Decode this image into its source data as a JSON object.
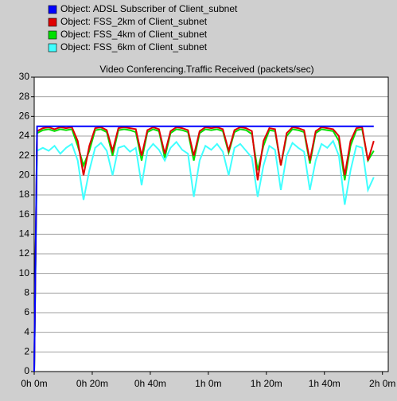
{
  "chart_data": {
    "type": "line",
    "title": "Video Conferencing.Traffic Received (packets/sec)",
    "x": [
      0,
      1,
      3,
      5,
      7,
      9,
      11,
      13,
      15,
      17,
      19,
      21,
      23,
      25,
      27,
      29,
      31,
      33,
      35,
      37,
      39,
      41,
      43,
      45,
      47,
      49,
      51,
      53,
      55,
      57,
      59,
      61,
      63,
      65,
      67,
      69,
      71,
      73,
      75,
      77,
      79,
      81,
      83,
      85,
      87,
      89,
      91,
      93,
      95,
      97,
      99,
      101,
      103,
      105,
      107,
      109,
      111,
      113,
      115,
      117
    ],
    "series": [
      {
        "name": "Object: ADSL Subscriber of Client_subnet",
        "color": "#0000ff",
        "values": [
          0,
          25,
          25,
          25,
          25,
          25,
          25,
          25,
          25,
          25,
          25,
          25,
          25,
          25,
          25,
          25,
          25,
          25,
          25,
          25,
          25,
          25,
          25,
          25,
          25,
          25,
          25,
          25,
          25,
          25,
          25,
          25,
          25,
          25,
          25,
          25,
          25,
          25,
          25,
          25,
          25,
          25,
          25,
          25,
          25,
          25,
          25,
          25,
          25,
          25,
          25,
          25,
          25,
          25,
          25,
          25,
          25,
          25,
          25,
          25
        ]
      },
      {
        "name": "Object: FSS_2km of Client_subnet",
        "color": "#e00000",
        "values": [
          0,
          24.5,
          24.8,
          24.9,
          24.7,
          24.9,
          24.8,
          24.9,
          23.5,
          20,
          23,
          24.8,
          24.9,
          24.6,
          22.5,
          24.8,
          24.9,
          24.8,
          24.7,
          22,
          24.6,
          24.9,
          24.7,
          22.2,
          24.5,
          24.9,
          24.8,
          24.6,
          22,
          24.5,
          24.9,
          24.8,
          24.9,
          24.7,
          22.5,
          24.6,
          24.9,
          24.8,
          24.5,
          19.5,
          23.5,
          24.8,
          24.7,
          21,
          24.3,
          24.9,
          24.8,
          24.6,
          21.5,
          24.5,
          24.9,
          24.8,
          24.7,
          24,
          20,
          23.5,
          24.8,
          24.9,
          21.5,
          23.5
        ]
      },
      {
        "name": "Object: FSS_4km of Client_subnet",
        "color": "#00e000",
        "values": [
          0,
          24.3,
          24.6,
          24.7,
          24.5,
          24.7,
          24.6,
          24.7,
          23,
          21,
          22.5,
          24.6,
          24.7,
          24.4,
          22,
          24.6,
          24.7,
          24.6,
          24.4,
          21.5,
          24.4,
          24.7,
          24.5,
          21.8,
          24.3,
          24.7,
          24.6,
          24.4,
          21.5,
          24.3,
          24.7,
          24.6,
          24.7,
          24.5,
          22.3,
          24.4,
          24.7,
          24.6,
          24.2,
          20.5,
          23,
          24.6,
          24.5,
          21,
          24,
          24.7,
          24.6,
          24.4,
          21.2,
          24.3,
          24.7,
          24.6,
          24.5,
          23.5,
          19.5,
          23,
          24.6,
          24.7,
          21.5,
          22.5
        ]
      },
      {
        "name": "Object: FSS_6km of Client_subnet",
        "color": "#40ffff",
        "values": [
          0,
          22.5,
          22.8,
          22.5,
          23,
          22.2,
          22.8,
          23.2,
          21.5,
          17.5,
          20.5,
          22.8,
          23.3,
          22.5,
          20,
          22.8,
          23,
          22.4,
          22.8,
          19,
          22.5,
          23.2,
          22.6,
          21.5,
          22.8,
          23.4,
          22.6,
          22.2,
          17.8,
          21.5,
          23,
          22.6,
          23.2,
          22.4,
          20,
          22.8,
          23.2,
          22.5,
          21.8,
          17.8,
          21,
          23,
          22.6,
          18.5,
          22,
          23.3,
          22.8,
          22.4,
          18.5,
          21.5,
          23.2,
          22.8,
          23.5,
          22,
          17,
          20.5,
          23,
          22.8,
          18.5,
          19.8
        ]
      }
    ],
    "xlim": [
      0,
      122
    ],
    "xticks": [
      {
        "value": 0,
        "label": "0h 0m"
      },
      {
        "value": 20,
        "label": "0h 20m"
      },
      {
        "value": 40,
        "label": "0h 40m"
      },
      {
        "value": 60,
        "label": "1h 0m"
      },
      {
        "value": 80,
        "label": "1h 20m"
      },
      {
        "value": 100,
        "label": "1h 40m"
      },
      {
        "value": 120,
        "label": "2h 0m"
      }
    ],
    "ylim": [
      0,
      30
    ],
    "yticks": [
      0,
      2,
      4,
      6,
      8,
      10,
      12,
      14,
      16,
      18,
      20,
      22,
      24,
      26,
      28,
      30
    ],
    "grid": true
  }
}
